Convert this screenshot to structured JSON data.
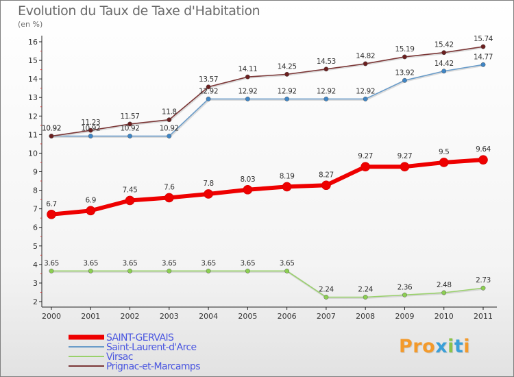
{
  "header": {
    "title": "Evolution du Taux de Taxe d'Habitation",
    "subtitle": "(en %)"
  },
  "brand": {
    "logo_text": "Proxiti"
  },
  "chart_data": {
    "type": "line",
    "title": "Evolution du Taux de Taxe d'Habitation",
    "subtitle": "(en %)",
    "xlabel": "",
    "ylabel": "",
    "categories": [
      "2000",
      "2001",
      "2002",
      "2003",
      "2004",
      "2005",
      "2006",
      "2007",
      "2008",
      "2009",
      "2010",
      "2011"
    ],
    "ylim": [
      2,
      16
    ],
    "yticks": [
      2,
      3,
      4,
      5,
      6,
      7,
      8,
      9,
      10,
      11,
      12,
      13,
      14,
      15,
      16
    ],
    "grid": false,
    "legend_position": "bottom-left",
    "series": [
      {
        "name": "SAINT-GERVAIS",
        "color": "#ee0000",
        "emphasis": true,
        "values": [
          6.7,
          6.9,
          7.45,
          7.6,
          7.8,
          8.03,
          8.19,
          8.27,
          9.27,
          9.27,
          9.5,
          9.64
        ],
        "labels": [
          "6.7",
          "6.9",
          "7.45",
          "7.6",
          "7.8",
          "8.03",
          "8.19",
          "8.27",
          "9.27",
          "9.27",
          "9.5",
          "9.64"
        ]
      },
      {
        "name": "Saint-Laurent-d'Arce",
        "color": "#6a9cc9",
        "marker_color": "#3f86c6",
        "values": [
          10.92,
          10.92,
          10.92,
          10.92,
          12.92,
          12.92,
          12.92,
          12.92,
          12.92,
          13.92,
          14.42,
          14.77
        ],
        "labels": [
          "10.92",
          "10.92",
          "10.92",
          "10.92",
          "12.92",
          "12.92",
          "12.92",
          "12.92",
          "12.92",
          "13.92",
          "14.42",
          "14.77"
        ]
      },
      {
        "name": "Virsac",
        "color": "#99d16b",
        "marker_color": "#8ccf52",
        "values": [
          3.65,
          3.65,
          3.65,
          3.65,
          3.65,
          3.65,
          3.65,
          2.24,
          2.24,
          2.36,
          2.48,
          2.73
        ],
        "labels": [
          "3.65",
          "3.65",
          "3.65",
          "3.65",
          "3.65",
          "3.65",
          "3.65",
          "2.24",
          "2.24",
          "2.36",
          "2.48",
          "2.73"
        ]
      },
      {
        "name": "Prignac-et-Marcamps",
        "color": "#7b3636",
        "marker_color": "#6b1f1f",
        "values": [
          10.92,
          11.23,
          11.57,
          11.8,
          13.57,
          14.11,
          14.25,
          14.53,
          14.82,
          15.19,
          15.42,
          15.74
        ],
        "labels": [
          "10.92",
          "11.23",
          "11.57",
          "11.8",
          "13.57",
          "14.11",
          "14.25",
          "14.53",
          "14.82",
          "15.19",
          "15.42",
          "15.74"
        ]
      }
    ]
  }
}
